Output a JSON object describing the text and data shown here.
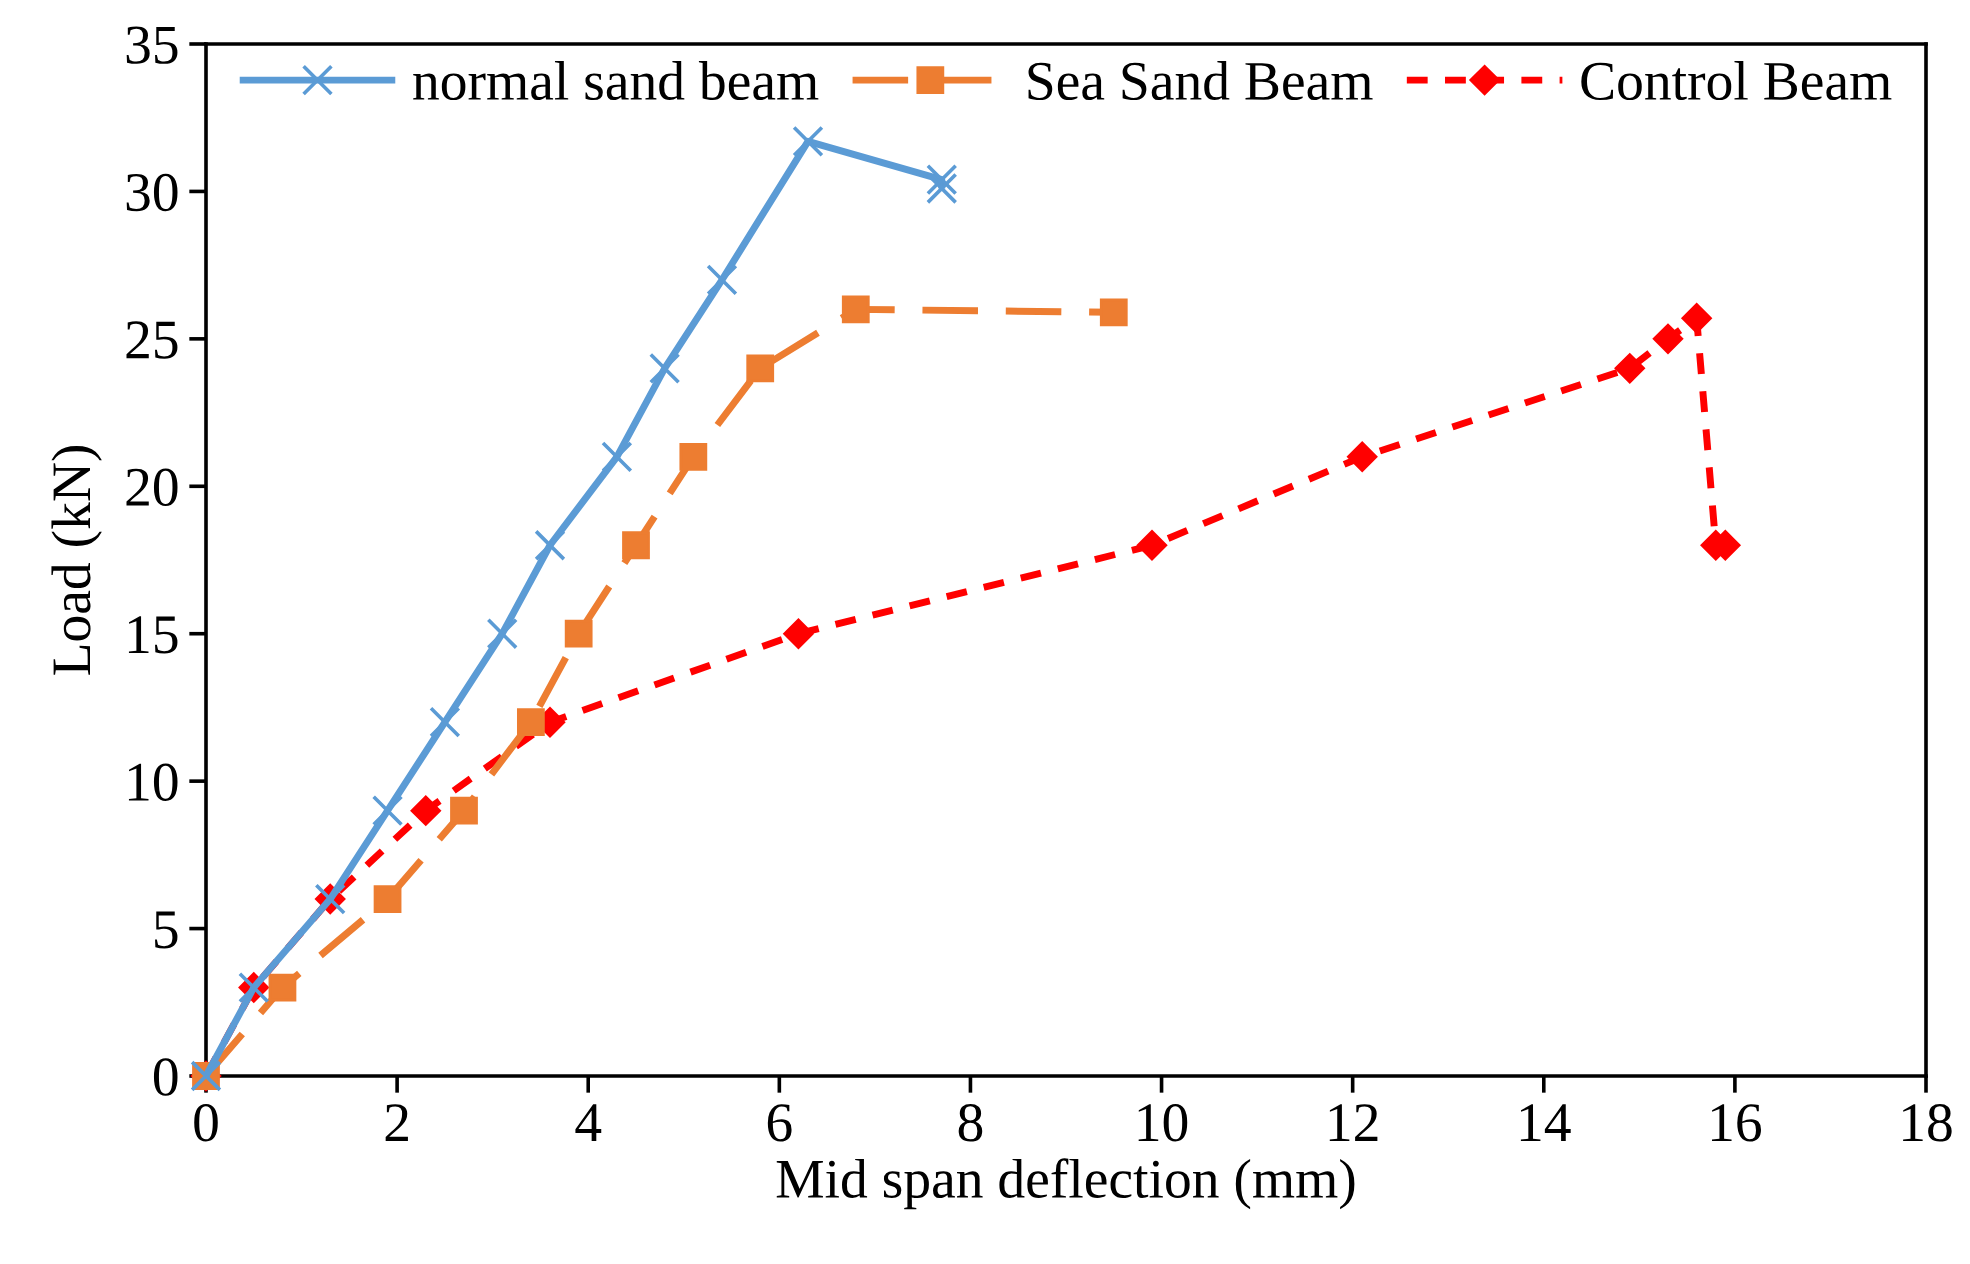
{
  "chart_data": {
    "type": "line",
    "xlabel": "Mid span deflection (mm)",
    "ylabel": "Load (kN)",
    "xlim": [
      0,
      18
    ],
    "xticks": [
      0,
      2,
      4,
      6,
      8,
      10,
      12,
      14,
      16,
      18
    ],
    "ylim": [
      0,
      35
    ],
    "yticks": [
      0,
      5,
      10,
      15,
      20,
      25,
      30,
      35
    ],
    "grid": false,
    "legend": "top",
    "series": [
      {
        "name": "normal sand beam",
        "color": "#5b9bd5",
        "marker": "cross",
        "line_style": "solid",
        "x": [
          0,
          0.5,
          1.3,
          1.9,
          2.5,
          3.1,
          3.6,
          4.3,
          4.8,
          5.4,
          6.3,
          7.7,
          7.7
        ],
        "values": [
          0,
          3,
          6,
          9,
          12,
          15,
          18,
          21,
          24,
          27,
          31.7,
          30.4,
          30.1
        ]
      },
      {
        "name": "Sea Sand Beam",
        "color": "#ed7d31",
        "marker": "square",
        "line_style": "dashed",
        "x": [
          0,
          0.8,
          1.9,
          2.7,
          3.4,
          3.9,
          4.5,
          5.1,
          5.8,
          6.8,
          9.5
        ],
        "values": [
          0,
          3,
          6,
          9,
          12,
          15,
          18,
          21,
          24,
          26,
          25.9
        ]
      },
      {
        "name": "Control Beam",
        "color": "#ff0000",
        "marker": "diamond",
        "line_style": "dotted",
        "x": [
          0,
          0.5,
          1.3,
          2.3,
          3.6,
          6.2,
          9.9,
          12.1,
          14.9,
          15.3,
          15.6,
          15.8,
          15.9
        ],
        "values": [
          0,
          3,
          6,
          9,
          12,
          15,
          18,
          21,
          24,
          25,
          25.7,
          18,
          18
        ]
      }
    ]
  }
}
